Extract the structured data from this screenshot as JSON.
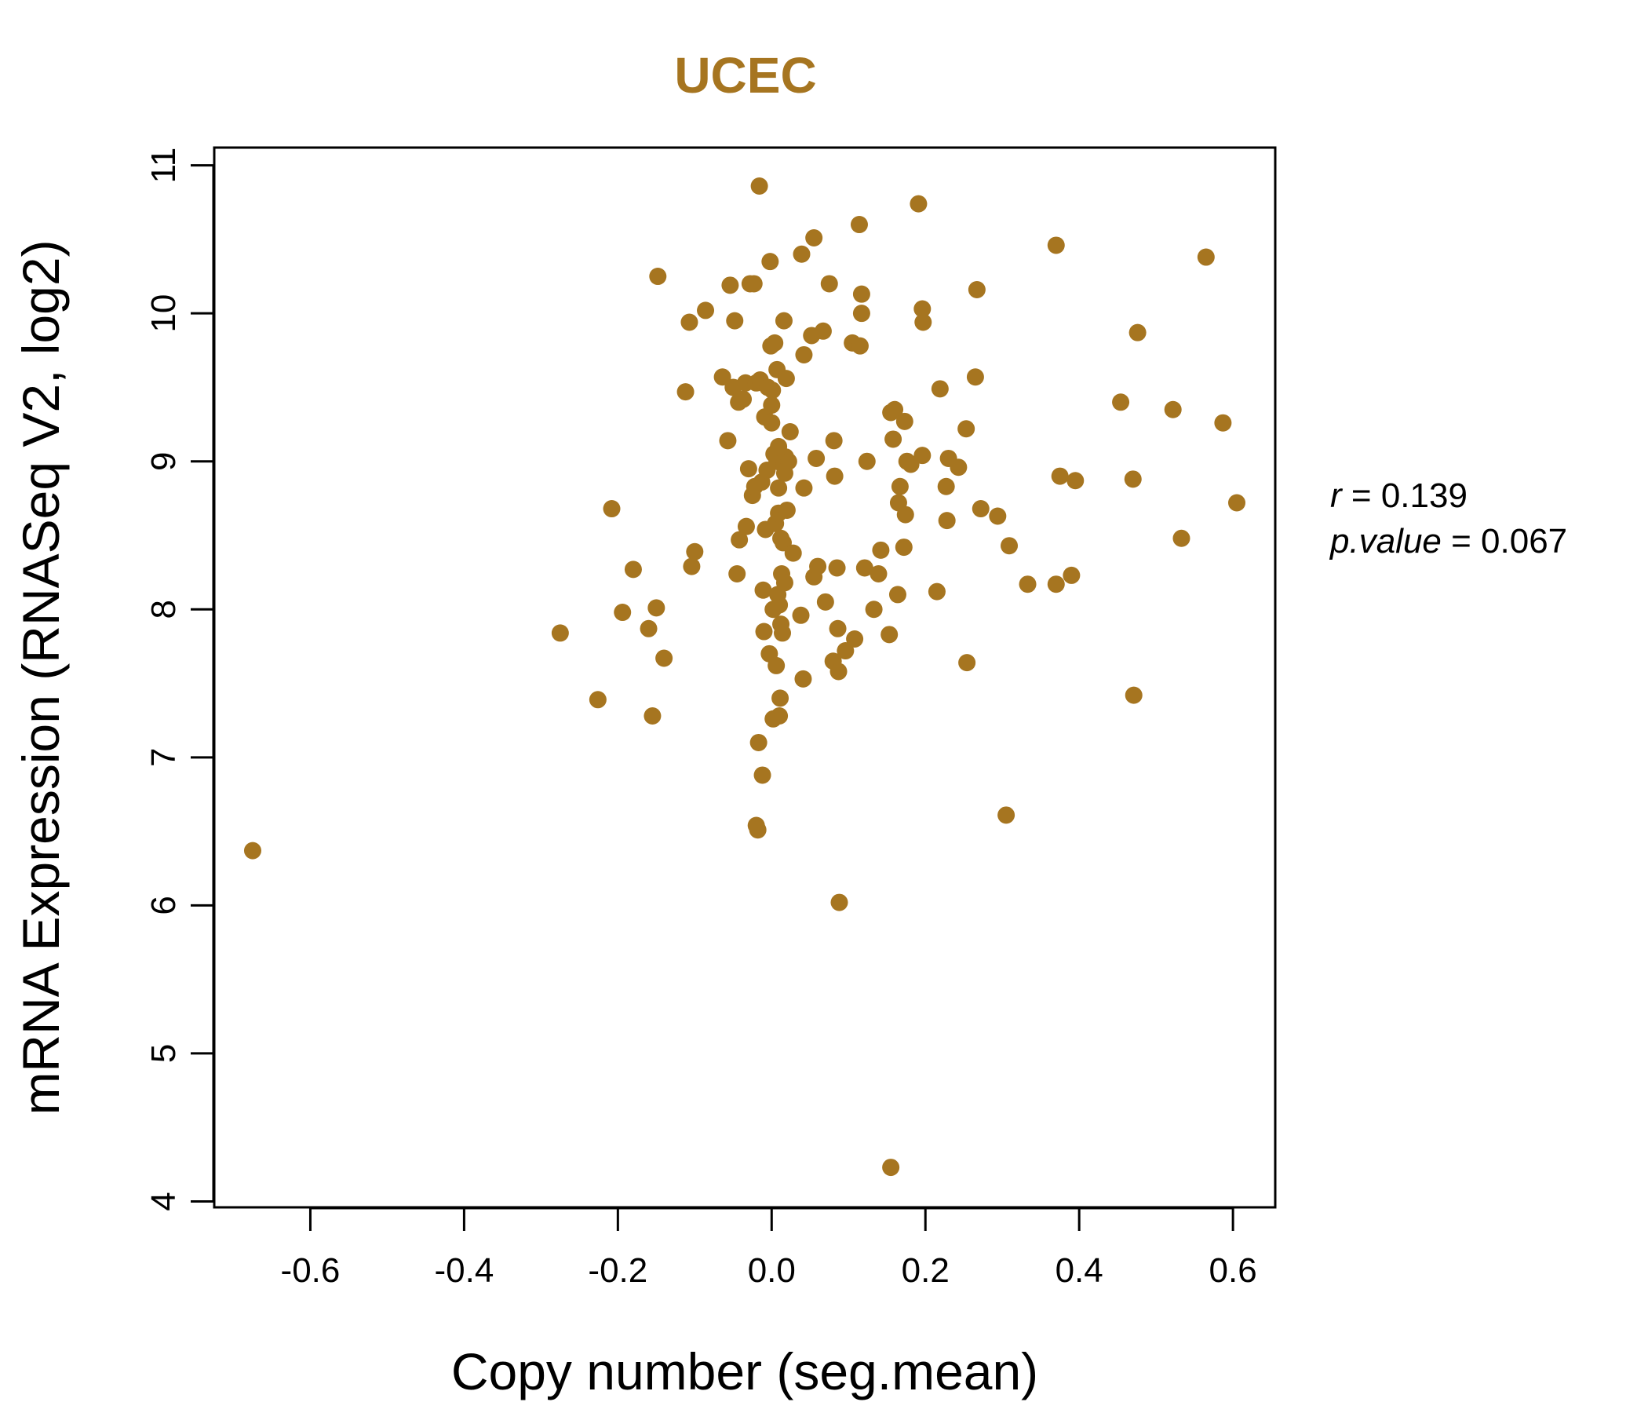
{
  "chart_data": {
    "type": "scatter",
    "title": "UCEC",
    "xlabel": "Copy number (seg.mean)",
    "ylabel": "mRNA Expression (RNASeq V2, log2)",
    "xlim": [
      -0.725,
      0.655
    ],
    "ylim": [
      3.96,
      11.12
    ],
    "x_ticks": [
      "-0.6",
      "-0.4",
      "-0.2",
      "0.0",
      "0.2",
      "0.4",
      "0.6"
    ],
    "y_ticks": [
      "4",
      "5",
      "6",
      "7",
      "8",
      "9",
      "10",
      "11"
    ],
    "grid": false,
    "annotations": {
      "r_label": "r",
      "r_value": "0.139",
      "p_label": "p.value",
      "p_value": "0.067"
    },
    "colors": {
      "point": "#A67520",
      "title": "#A67520",
      "axis": "#000000"
    },
    "points": [
      [
        -0.675,
        6.37
      ],
      [
        -0.275,
        7.84
      ],
      [
        -0.226,
        7.39
      ],
      [
        -0.208,
        8.68
      ],
      [
        -0.194,
        7.98
      ],
      [
        -0.18,
        8.27
      ],
      [
        -0.16,
        7.87
      ],
      [
        -0.155,
        7.28
      ],
      [
        -0.15,
        8.01
      ],
      [
        -0.148,
        10.25
      ],
      [
        -0.14,
        7.67
      ],
      [
        -0.112,
        9.47
      ],
      [
        -0.107,
        9.94
      ],
      [
        -0.104,
        8.29
      ],
      [
        -0.1,
        8.39
      ],
      [
        -0.086,
        10.02
      ],
      [
        -0.064,
        9.57
      ],
      [
        -0.057,
        9.14
      ],
      [
        -0.054,
        10.19
      ],
      [
        -0.05,
        9.5
      ],
      [
        -0.048,
        9.95
      ],
      [
        -0.045,
        8.24
      ],
      [
        -0.043,
        9.4
      ],
      [
        -0.042,
        8.47
      ],
      [
        -0.037,
        9.42
      ],
      [
        -0.034,
        9.53
      ],
      [
        -0.033,
        8.56
      ],
      [
        -0.03,
        8.95
      ],
      [
        -0.028,
        10.2
      ],
      [
        -0.025,
        8.77
      ],
      [
        -0.023,
        10.2
      ],
      [
        -0.022,
        8.83
      ],
      [
        -0.02,
        9.53
      ],
      [
        -0.02,
        6.54
      ],
      [
        -0.018,
        6.51
      ],
      [
        -0.017,
        7.1
      ],
      [
        -0.016,
        10.86
      ],
      [
        -0.015,
        9.55
      ],
      [
        -0.013,
        8.86
      ],
      [
        -0.012,
        6.88
      ],
      [
        -0.011,
        8.13
      ],
      [
        -0.01,
        7.85
      ],
      [
        -0.009,
        9.3
      ],
      [
        -0.008,
        8.54
      ],
      [
        -0.006,
        8.94
      ],
      [
        -0.005,
        9.5
      ],
      [
        -0.003,
        7.7
      ],
      [
        -0.002,
        10.35
      ],
      [
        -0.001,
        9.78
      ],
      [
        0.0,
        9.38
      ],
      [
        0.0,
        9.26
      ],
      [
        0.001,
        9.48
      ],
      [
        0.002,
        8.0
      ],
      [
        0.002,
        7.26
      ],
      [
        0.003,
        9.05
      ],
      [
        0.004,
        9.8
      ],
      [
        0.005,
        8.58
      ],
      [
        0.006,
        7.62
      ],
      [
        0.007,
        9.62
      ],
      [
        0.007,
        9.0
      ],
      [
        0.008,
        8.1
      ],
      [
        0.009,
        8.65
      ],
      [
        0.009,
        9.1
      ],
      [
        0.009,
        8.82
      ],
      [
        0.01,
        8.03
      ],
      [
        0.01,
        7.28
      ],
      [
        0.011,
        7.4
      ],
      [
        0.012,
        7.9
      ],
      [
        0.012,
        8.48
      ],
      [
        0.013,
        8.24
      ],
      [
        0.014,
        7.84
      ],
      [
        0.015,
        8.45
      ],
      [
        0.016,
        8.97
      ],
      [
        0.016,
        9.95
      ],
      [
        0.017,
        8.18
      ],
      [
        0.017,
        8.92
      ],
      [
        0.018,
        9.03
      ],
      [
        0.019,
        9.56
      ],
      [
        0.02,
        8.67
      ],
      [
        0.022,
        9.0
      ],
      [
        0.024,
        9.2
      ],
      [
        0.028,
        8.38
      ],
      [
        0.038,
        7.96
      ],
      [
        0.039,
        10.4
      ],
      [
        0.041,
        7.53
      ],
      [
        0.042,
        9.72
      ],
      [
        0.042,
        8.82
      ],
      [
        0.052,
        9.85
      ],
      [
        0.055,
        10.51
      ],
      [
        0.055,
        8.22
      ],
      [
        0.058,
        9.02
      ],
      [
        0.06,
        8.29
      ],
      [
        0.067,
        9.88
      ],
      [
        0.07,
        8.05
      ],
      [
        0.075,
        10.2
      ],
      [
        0.08,
        7.65
      ],
      [
        0.081,
        9.14
      ],
      [
        0.082,
        8.9
      ],
      [
        0.085,
        8.28
      ],
      [
        0.086,
        7.87
      ],
      [
        0.087,
        7.58
      ],
      [
        0.088,
        6.02
      ],
      [
        0.096,
        7.72
      ],
      [
        0.105,
        9.8
      ],
      [
        0.108,
        7.8
      ],
      [
        0.114,
        10.6
      ],
      [
        0.115,
        9.78
      ],
      [
        0.117,
        10.0
      ],
      [
        0.117,
        10.13
      ],
      [
        0.121,
        8.28
      ],
      [
        0.124,
        9.0
      ],
      [
        0.133,
        8.0
      ],
      [
        0.139,
        8.24
      ],
      [
        0.142,
        8.4
      ],
      [
        0.153,
        7.83
      ],
      [
        0.155,
        9.33
      ],
      [
        0.155,
        4.23
      ],
      [
        0.158,
        9.15
      ],
      [
        0.16,
        9.35
      ],
      [
        0.164,
        8.1
      ],
      [
        0.165,
        8.72
      ],
      [
        0.167,
        8.83
      ],
      [
        0.172,
        8.42
      ],
      [
        0.173,
        9.27
      ],
      [
        0.174,
        8.64
      ],
      [
        0.176,
        9.0
      ],
      [
        0.181,
        8.98
      ],
      [
        0.191,
        10.74
      ],
      [
        0.196,
        10.03
      ],
      [
        0.196,
        9.04
      ],
      [
        0.197,
        9.94
      ],
      [
        0.215,
        8.12
      ],
      [
        0.219,
        9.49
      ],
      [
        0.227,
        8.83
      ],
      [
        0.228,
        8.6
      ],
      [
        0.23,
        9.02
      ],
      [
        0.243,
        8.96
      ],
      [
        0.253,
        9.22
      ],
      [
        0.254,
        7.64
      ],
      [
        0.265,
        9.57
      ],
      [
        0.267,
        10.16
      ],
      [
        0.272,
        8.68
      ],
      [
        0.294,
        8.63
      ],
      [
        0.305,
        6.61
      ],
      [
        0.309,
        8.43
      ],
      [
        0.333,
        8.17
      ],
      [
        0.37,
        8.17
      ],
      [
        0.37,
        10.46
      ],
      [
        0.375,
        8.9
      ],
      [
        0.39,
        8.23
      ],
      [
        0.395,
        8.87
      ],
      [
        0.454,
        9.4
      ],
      [
        0.47,
        8.88
      ],
      [
        0.471,
        7.42
      ],
      [
        0.476,
        9.87
      ],
      [
        0.522,
        9.35
      ],
      [
        0.533,
        8.48
      ],
      [
        0.565,
        10.38
      ],
      [
        0.587,
        9.26
      ],
      [
        0.605,
        8.72
      ]
    ]
  }
}
